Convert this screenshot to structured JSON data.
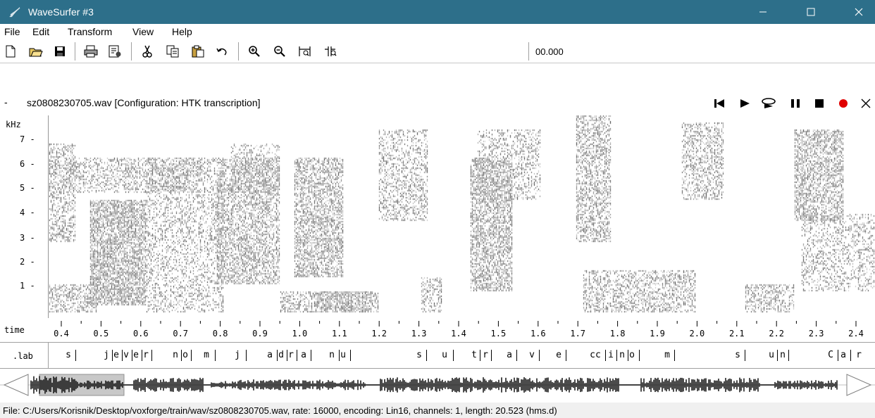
{
  "window": {
    "title": "WaveSurfer #3",
    "controls": {
      "minimize": "minimize-icon",
      "maximize": "maximize-icon",
      "close": "close-icon"
    }
  },
  "menu": [
    "File",
    "Edit",
    "Transform",
    "View",
    "Help"
  ],
  "toolbar": {
    "buttons": [
      "new-file-icon",
      "open-folder-icon",
      "save-icon",
      "print-icon",
      "properties-icon",
      "cut-icon",
      "copy-icon",
      "paste-icon",
      "undo-icon",
      "zoom-in-icon",
      "zoom-out-icon",
      "zoom-to-selection-icon",
      "zoom-all-icon"
    ],
    "time_readout": "00.000"
  },
  "file_header": {
    "dash": "-",
    "text": "sz0808230705.wav [Configuration: HTK transcription]",
    "playback": [
      "skip-to-start-icon",
      "play-icon",
      "play-loop-icon",
      "pause-icon",
      "stop-icon",
      "record-icon",
      "close-pane-icon"
    ],
    "record_color": "#e00000"
  },
  "spectrogram": {
    "unit_label": "kHz",
    "y_ticks": [
      "7",
      "6",
      "5",
      "4",
      "3",
      "2",
      "1"
    ]
  },
  "time_axis": {
    "label": "time",
    "ticks": [
      "0.4",
      "0.5",
      "0.6",
      "0.7",
      "0.8",
      "0.9",
      "1.0",
      "1.1",
      "1.2",
      "1.3",
      "1.4",
      "1.5",
      "1.6",
      "1.7",
      "1.8",
      "1.9",
      "2.0",
      "2.1",
      "2.2",
      "2.3",
      "2.4"
    ]
  },
  "transcription": {
    "label": ".lab",
    "segments": [
      "s",
      "j",
      "e",
      "v",
      "e",
      "r",
      "n",
      "o",
      "m",
      "j",
      "a",
      "d",
      "r",
      "a",
      "n",
      "u",
      "s",
      "u",
      "t",
      "r",
      "a",
      "v",
      "e",
      "cc",
      "i",
      "n",
      "o",
      "m",
      "s",
      "u",
      "n",
      "C",
      "a",
      "r"
    ]
  },
  "status": "File: C:/Users/Korisnik/Desktop/voxforge/train/wav/sz0808230705.wav, rate: 16000, encoding: Lin16, channels: 1, length: 20.523 (hms.d)"
}
